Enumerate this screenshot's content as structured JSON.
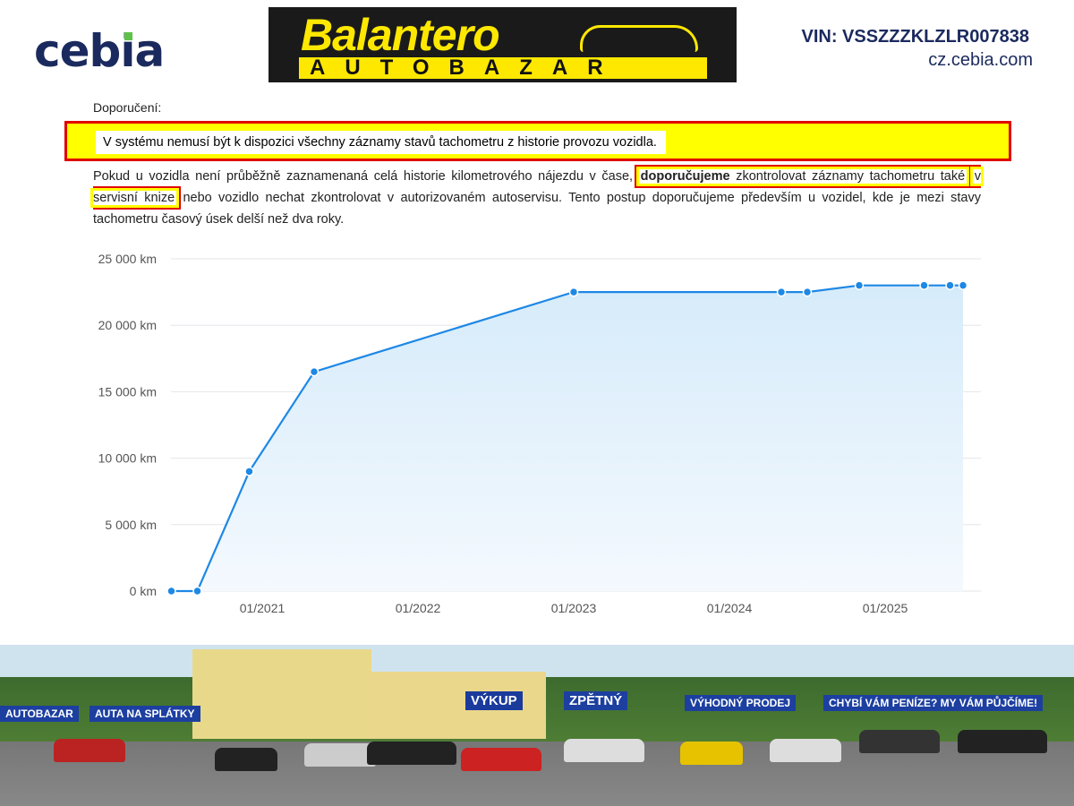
{
  "header": {
    "logo_text": "cebia",
    "dealer_logo": {
      "name": "Balantero",
      "subtitle": "AUTOBAZAR"
    },
    "vin": "VIN: VSSZZZKLZLR007838",
    "website": "cz.cebia.com"
  },
  "recommendation": {
    "heading": "Doporučení:",
    "warning": "V systému nemusí být k dispozici všechny záznamy stavů tachometru z historie provozu vozidla.",
    "para_part1": "Pokud u vozidla není průběžně zaznamenaná celá historie kilometrového nájezdu v čase,",
    "para_bold": "doporučujeme",
    "para_part2": "zkontrolovat záznamy tachometru také",
    "para_highlight2": "v servisní knize",
    "para_part3": "nebo vozidlo nechat zkontrolovat v autorizovaném autoservisu. Tento postup doporučujeme především u vozidel, kde je mezi stavy tachometru časový úsek delší než dva roky."
  },
  "chart_data": {
    "type": "area",
    "title": "",
    "xlabel": "",
    "ylabel": "",
    "ylim": [
      0,
      25000
    ],
    "yticks": [
      "0 km",
      "5 000 km",
      "10 000 km",
      "15 000 km",
      "20 000 km",
      "25 000 km"
    ],
    "ytick_values": [
      0,
      5000,
      10000,
      15000,
      20000,
      25000
    ],
    "xticks": [
      "01/2021",
      "01/2022",
      "01/2023",
      "01/2024",
      "01/2025"
    ],
    "grid": true,
    "line_color": "#1e88e5",
    "fill_color": "#d6ebfa",
    "points": [
      {
        "date": "2020-06",
        "km": 0
      },
      {
        "date": "2020-08",
        "km": 0
      },
      {
        "date": "2020-12",
        "km": 9000
      },
      {
        "date": "2021-05",
        "km": 16500
      },
      {
        "date": "2023-01",
        "km": 22500
      },
      {
        "date": "2024-05",
        "km": 22500
      },
      {
        "date": "2024-07",
        "km": 22500
      },
      {
        "date": "2024-11",
        "km": 23000
      },
      {
        "date": "2025-04",
        "km": 23000
      },
      {
        "date": "2025-06",
        "km": 23000
      },
      {
        "date": "2025-07",
        "km": 23000
      }
    ]
  },
  "photo": {
    "banners": [
      "AUTOBAZAR",
      "AUTA NA SPLÁTKY",
      "VÝKUP",
      "ZPĚTNÝ",
      "VÝHODNÝ PRODEJ",
      "CHYBÍ VÁM PENÍZE? MY VÁM PŮJČÍME!"
    ]
  },
  "colors": {
    "brand": "#1b2a5e",
    "highlight": "#ffff00",
    "border": "#e00000"
  }
}
